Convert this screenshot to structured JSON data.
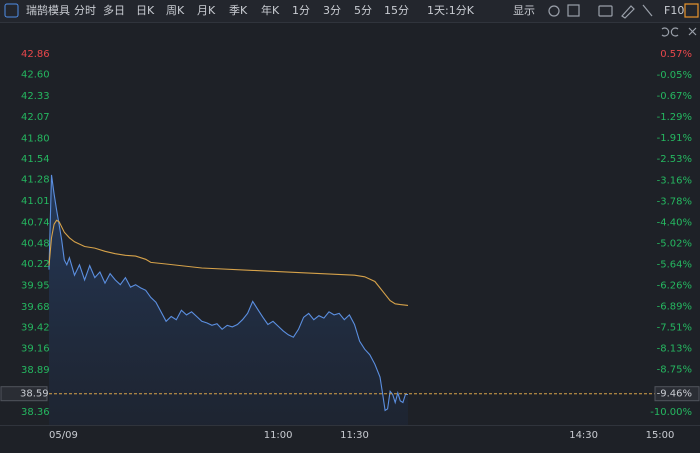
{
  "toolbar": {
    "stock_name": "瑞鹄模具",
    "tabs": [
      "分时",
      "多日",
      "日K",
      "周K",
      "月K",
      "季K",
      "年K",
      "1分",
      "3分",
      "5分",
      "15分",
      "1天:1分K"
    ],
    "active_tab": 0,
    "display": "显示",
    "f10": "F10"
  },
  "chart_data": {
    "type": "line",
    "xlim": [
      0,
      240
    ],
    "xticks": [
      {
        "value": 0,
        "label": "05/09"
      },
      {
        "value": 90,
        "label": "11:00"
      },
      {
        "value": 120,
        "label": "11:30"
      },
      {
        "value": 210,
        "label": "14:30"
      },
      {
        "value": 240,
        "label": "15:00"
      }
    ],
    "ylim": [
      38.36,
      42.86
    ],
    "yticks": [
      42.86,
      {
        "value": 42.6,
        "label": "42.60"
      },
      42.33,
      42.07,
      {
        "value": 41.8,
        "label": "41.80"
      },
      41.54,
      41.28,
      41.01,
      40.74,
      40.48,
      40.22,
      39.95,
      39.68,
      39.42,
      39.16,
      38.89,
      38.36
    ],
    "y2lim": [
      -10.0,
      0.57
    ],
    "y2ticks": [
      {
        "value": 0.57,
        "label": "0.57%"
      },
      {
        "value": -0.05,
        "label": "-0.05%"
      },
      {
        "value": -0.67,
        "label": "-0.67%"
      },
      {
        "value": -1.29,
        "label": "-1.29%"
      },
      {
        "value": -1.91,
        "label": "-1.91%"
      },
      {
        "value": -2.53,
        "label": "-2.53%"
      },
      {
        "value": -3.16,
        "label": "-3.16%"
      },
      {
        "value": -3.78,
        "label": "-3.78%"
      },
      {
        "value": -4.4,
        "label": "-4.40%"
      },
      {
        "value": -5.02,
        "label": "-5.02%"
      },
      {
        "value": -5.64,
        "label": "-5.64%"
      },
      {
        "value": -6.26,
        "label": "-6.26%"
      },
      {
        "value": -6.89,
        "label": "-6.89%"
      },
      {
        "value": -7.51,
        "label": "-7.51%"
      },
      {
        "value": -8.13,
        "label": "-8.13%"
      },
      {
        "value": -8.75,
        "label": "-8.75%"
      },
      {
        "value": -10.0,
        "label": "-10.00%"
      }
    ],
    "up_color": "#e8474b",
    "down_color": "#25b760",
    "current": {
      "value": 38.59,
      "change": {
        "value": -9.46,
        "label": "-9.46%"
      },
      "color": "#d6a24a"
    },
    "series": [
      {
        "color": "#5b8fe0",
        "area": true,
        "x": [
          0,
          1,
          2,
          3,
          4,
          5,
          6,
          7,
          8,
          10,
          12,
          14,
          16,
          18,
          20,
          22,
          24,
          26,
          28,
          30,
          32,
          34,
          36,
          38,
          40,
          42,
          44,
          46,
          48,
          50,
          52,
          54,
          56,
          58,
          60,
          62,
          64,
          66,
          68,
          70,
          72,
          74,
          76,
          78,
          80,
          82,
          84,
          86,
          88,
          90,
          92,
          94,
          96,
          98,
          100,
          102,
          104,
          106,
          108,
          110,
          112,
          114,
          116,
          118,
          120,
          122,
          124,
          126,
          128,
          130,
          131,
          132,
          133,
          134,
          135,
          136,
          137,
          138,
          139,
          140,
          141
        ],
        "values": [
          40.15,
          41.34,
          41.1,
          40.9,
          40.71,
          40.52,
          40.27,
          40.21,
          40.3,
          40.08,
          40.21,
          40.02,
          40.2,
          40.05,
          40.12,
          39.98,
          40.1,
          40.02,
          39.96,
          40.05,
          39.93,
          39.96,
          39.92,
          39.89,
          39.8,
          39.74,
          39.62,
          39.5,
          39.56,
          39.52,
          39.64,
          39.58,
          39.62,
          39.56,
          39.5,
          39.48,
          39.45,
          39.47,
          39.4,
          39.45,
          39.43,
          39.46,
          39.52,
          39.6,
          39.75,
          39.65,
          39.55,
          39.46,
          39.5,
          39.44,
          39.38,
          39.33,
          39.3,
          39.4,
          39.55,
          39.6,
          39.52,
          39.57,
          39.54,
          39.62,
          39.58,
          39.6,
          39.52,
          39.58,
          39.46,
          39.25,
          39.15,
          39.08,
          38.96,
          38.8,
          38.6,
          38.38,
          38.4,
          38.62,
          38.58,
          38.48,
          38.6,
          38.5,
          38.48,
          38.58,
          38.58
        ]
      },
      {
        "color": "#d6a24a",
        "area": false,
        "x": [
          0,
          1,
          2,
          3,
          4,
          6,
          8,
          10,
          14,
          18,
          22,
          26,
          30,
          34,
          38,
          40,
          46,
          60,
          80,
          100,
          120,
          124,
          128,
          130,
          132,
          134,
          136,
          138,
          141
        ],
        "values": [
          40.2,
          40.55,
          40.72,
          40.77,
          40.75,
          40.62,
          40.55,
          40.5,
          40.44,
          40.42,
          40.38,
          40.35,
          40.33,
          40.32,
          40.28,
          40.24,
          40.22,
          40.17,
          40.14,
          40.11,
          40.08,
          40.06,
          40.0,
          39.92,
          39.84,
          39.76,
          39.72,
          39.71,
          39.7
        ]
      }
    ]
  }
}
